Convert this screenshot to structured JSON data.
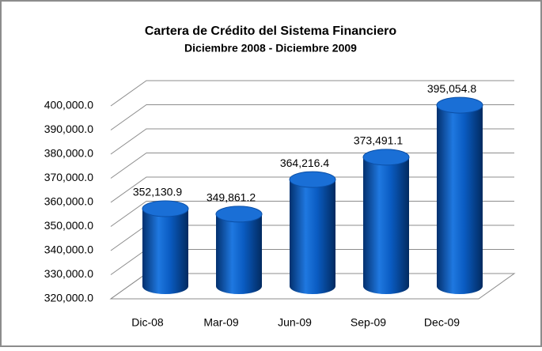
{
  "chart_data": {
    "type": "bar3d",
    "title": "Cartera de Crédito del Sistema Financiero",
    "subtitle": "Diciembre 2008 - Diciembre 2009",
    "categories": [
      "Dic-08",
      "Mar-09",
      "Jun-09",
      "Sep-09",
      "Dec-09"
    ],
    "values": [
      352130.9,
      349861.2,
      364216.4,
      373491.1,
      395054.8
    ],
    "value_labels": [
      "352,130.9",
      "349,861.2",
      "364,216.4",
      "373,491.1",
      "395,054.8"
    ],
    "color": "#0a5cc2",
    "ylim": [
      320000,
      400000
    ],
    "yticks": [
      {
        "value": 320000,
        "label": "320,000.0"
      },
      {
        "value": 330000,
        "label": "330,000.0"
      },
      {
        "value": 340000,
        "label": "340,000.0"
      },
      {
        "value": 350000,
        "label": "350,000.0"
      },
      {
        "value": 360000,
        "label": "360,000.0"
      },
      {
        "value": 370000,
        "label": "370,000.0"
      },
      {
        "value": 380000,
        "label": "380,000.0"
      },
      {
        "value": 390000,
        "label": "390,000.0"
      },
      {
        "value": 400000,
        "label": "400,000.0"
      }
    ],
    "grid": true
  }
}
